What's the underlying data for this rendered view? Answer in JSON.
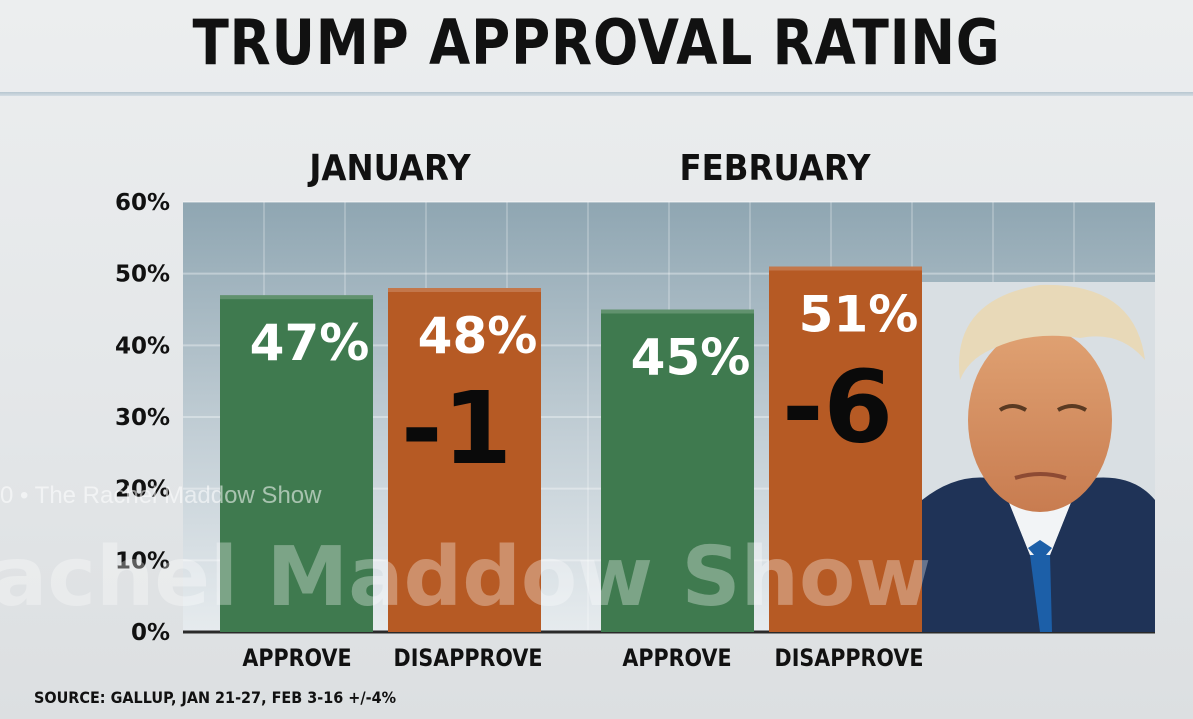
{
  "chart_data": {
    "type": "bar",
    "title": "TRUMP APPROVAL RATING",
    "groups": [
      "JANUARY",
      "FEBRUARY"
    ],
    "categories": [
      "APPROVE",
      "DISAPPROVE"
    ],
    "series": [
      {
        "group": "JANUARY",
        "values": [
          47,
          48
        ],
        "value_labels": [
          "47%",
          "48%"
        ],
        "net_label": "-1"
      },
      {
        "group": "FEBRUARY",
        "values": [
          45,
          51
        ],
        "value_labels": [
          "45%",
          "51%"
        ],
        "net_label": "-6"
      }
    ],
    "yticks": [
      "0%",
      "10%",
      "20%",
      "30%",
      "40%",
      "50%",
      "60%"
    ],
    "ylim": [
      0,
      60
    ],
    "grid": true,
    "colors": {
      "approve": "#3f7a4f",
      "disapprove": "#b65a24",
      "plot_bg_top": "#8fa6b2",
      "plot_bg_bottom": "#dfe6ea"
    },
    "source": "SOURCE: GALLUP, JAN 21-27, FEB 3-16  +/-4%"
  },
  "watermark": {
    "text": "achel Maddow Show",
    "small_text": "0 • The Rachel Maddow Show"
  },
  "photo": {
    "icon": "trump-portrait"
  }
}
